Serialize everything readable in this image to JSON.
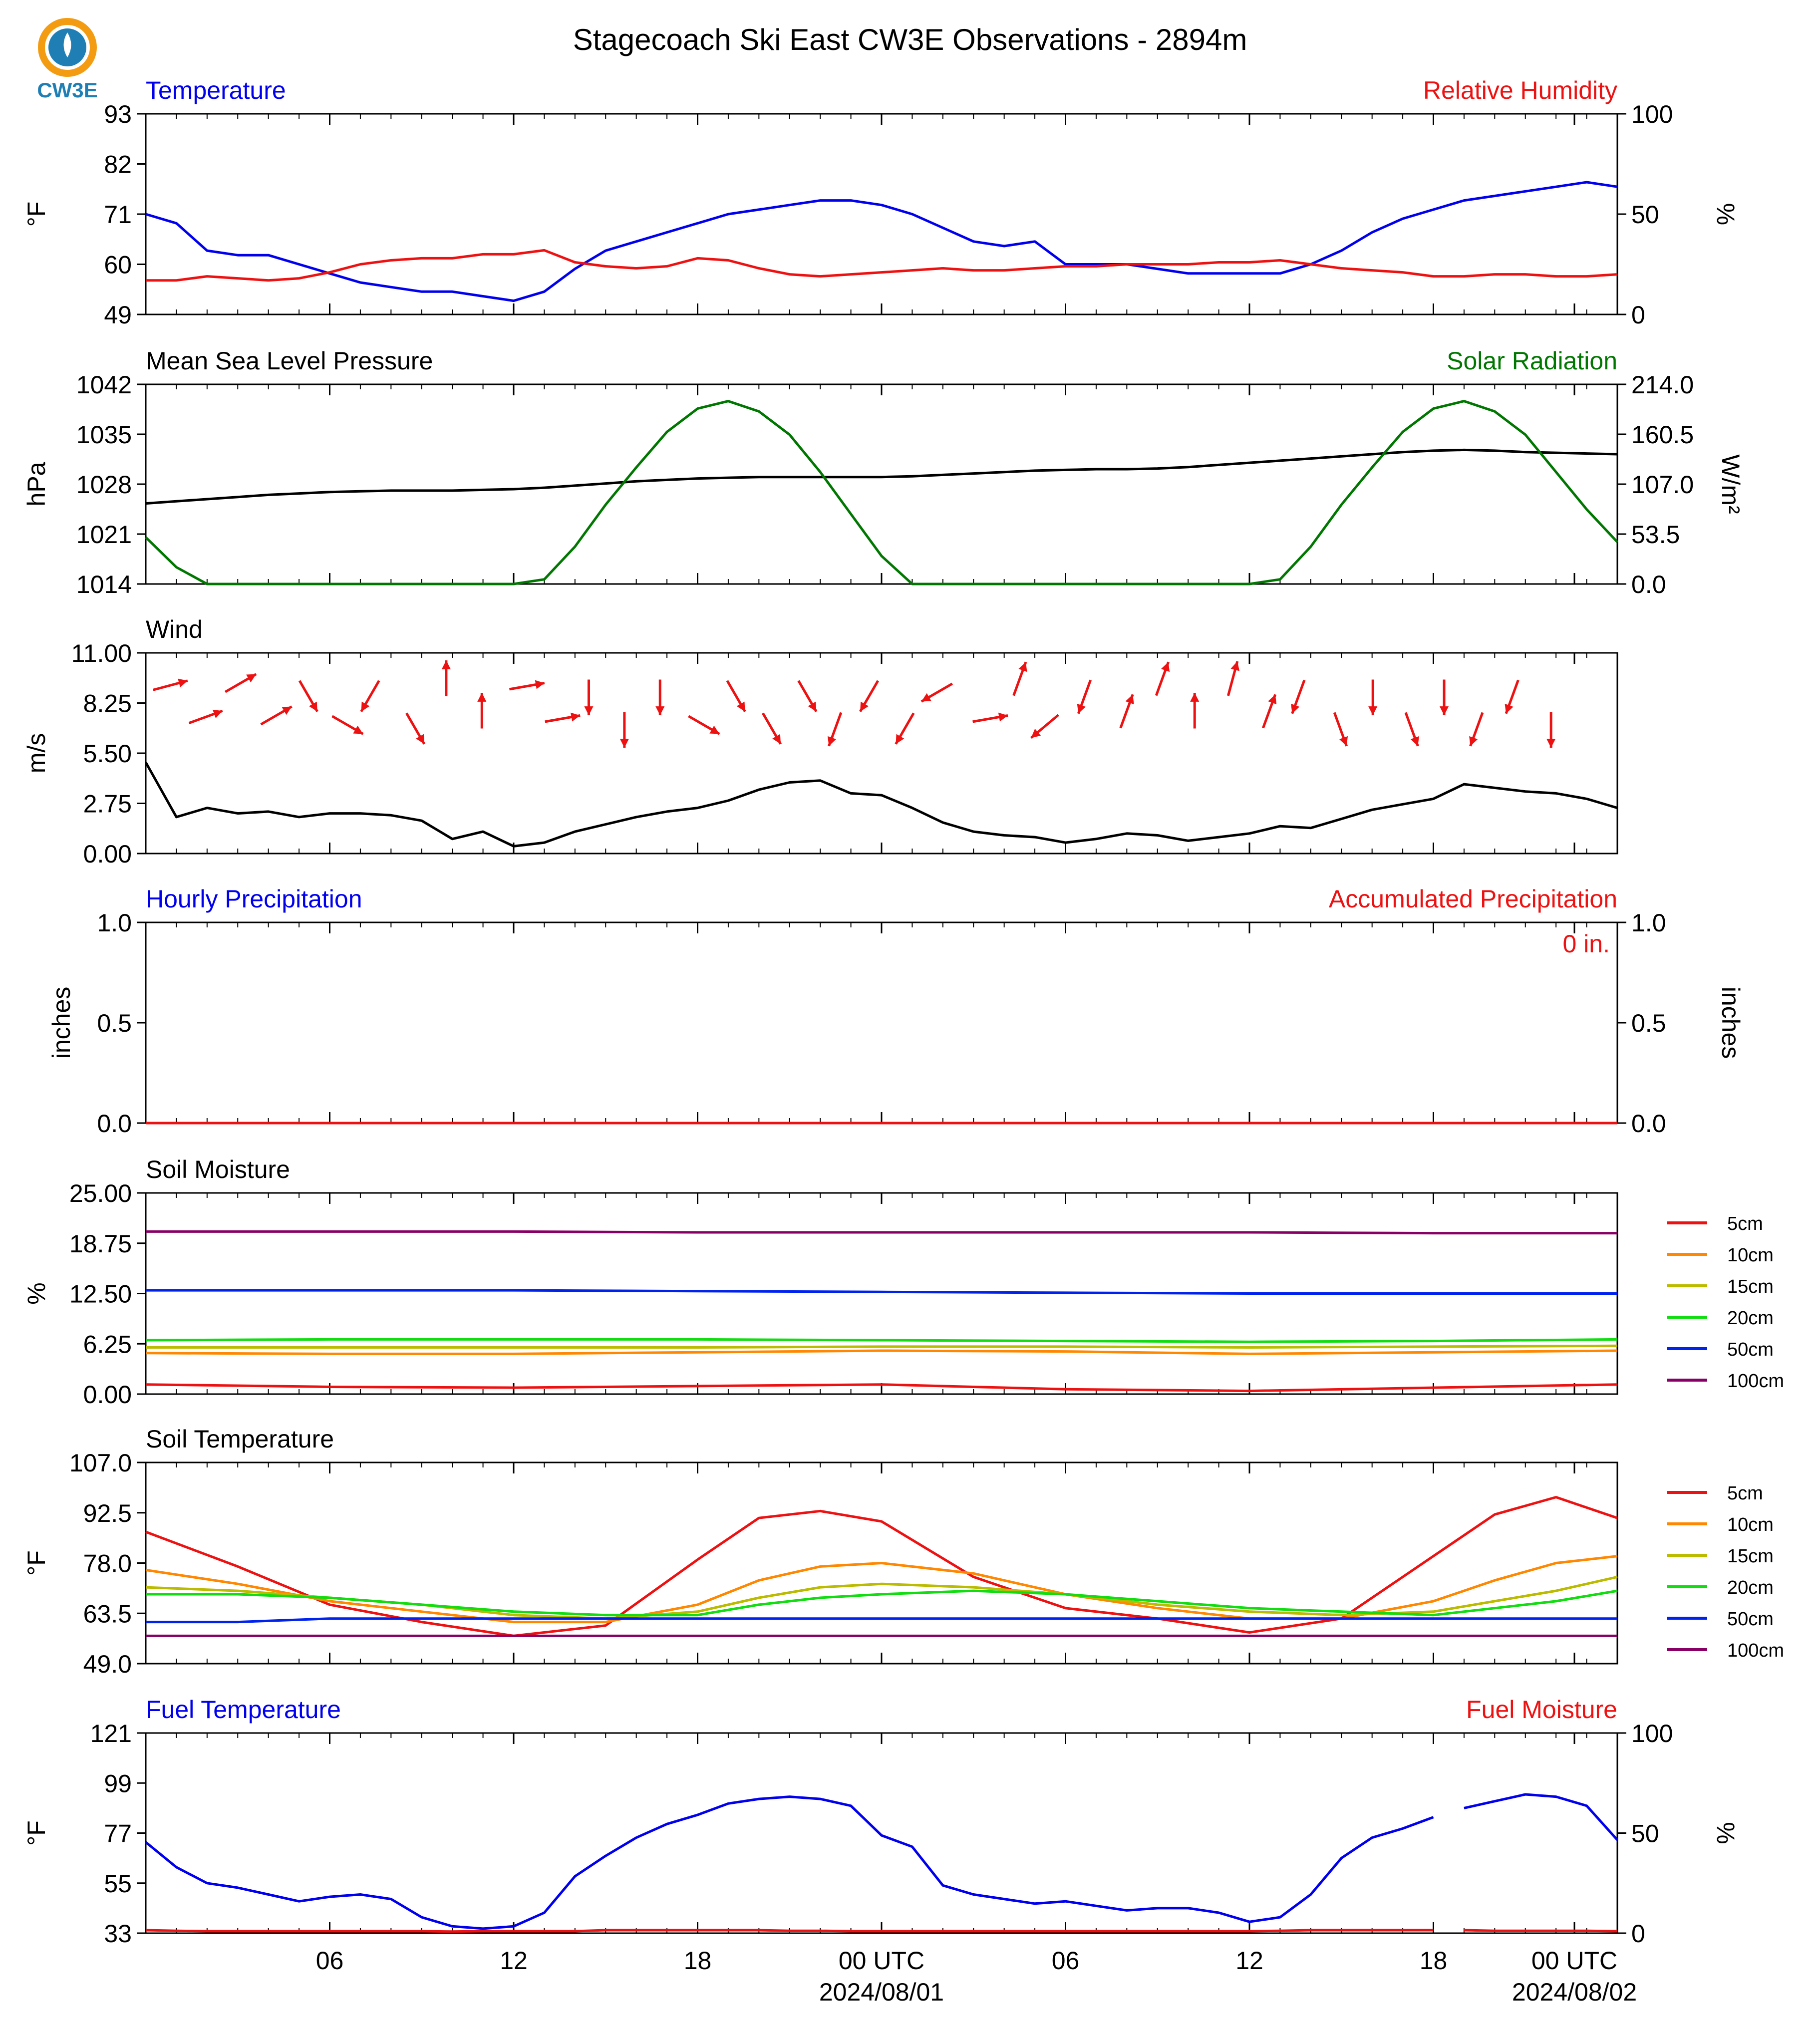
{
  "title": "Stagecoach Ski East CW3E Observations - 2894m",
  "logo": {
    "text": "CW3E",
    "colors": {
      "ring": "#f39c12",
      "drop": "#1f7fb5",
      "text": "#1f7fb5"
    }
  },
  "colors": {
    "blue": "#0000ee",
    "red": "#ee1111",
    "green": "#007700",
    "black": "#000000",
    "soil_5cm": "#ee1111",
    "soil_10cm": "#ff8800",
    "soil_15cm": "#bbbb00",
    "soil_20cm": "#11dd11",
    "soil_50cm": "#0022ee",
    "soil_100cm": "#880066"
  },
  "x_axis": {
    "tick_labels": [
      "06",
      "12",
      "18",
      "00 UTC",
      "06",
      "12",
      "18",
      "00 UTC"
    ],
    "date_labels": [
      "2024/08/01",
      "2024/08/02"
    ]
  },
  "chart_data": [
    {
      "type": "line",
      "panel": "temperature_rh",
      "title_left": "Temperature",
      "title_right": "Relative Humidity",
      "ylabel_left": "°F",
      "ylabel_right": "%",
      "yticks_left": [
        "49",
        "60",
        "71",
        "82",
        "93"
      ],
      "yticks_right": [
        "0",
        "50",
        "100"
      ],
      "ylim_left": [
        49,
        93
      ],
      "ylim_right": [
        0,
        100
      ],
      "x_hours": [
        0,
        1,
        2,
        3,
        4,
        5,
        6,
        7,
        8,
        9,
        10,
        11,
        12,
        13,
        14,
        15,
        16,
        17,
        18,
        19,
        20,
        21,
        22,
        23,
        24,
        25,
        26,
        27,
        28,
        29,
        30,
        31,
        32,
        33,
        34,
        35,
        36,
        37,
        38,
        39,
        40,
        41,
        42,
        43,
        44,
        45,
        46,
        47,
        48
      ],
      "series": [
        {
          "name": "Temperature",
          "axis": "left",
          "values": [
            71,
            69,
            63,
            62,
            62,
            60,
            58,
            56,
            55,
            54,
            54,
            53,
            52,
            54,
            59,
            63,
            65,
            67,
            69,
            71,
            72,
            73,
            74,
            74,
            73,
            71,
            68,
            65,
            64,
            65,
            60,
            60,
            60,
            59,
            58,
            58,
            58,
            58,
            60,
            63,
            67,
            70,
            72,
            74,
            75,
            76,
            77,
            78,
            77
          ]
        },
        {
          "name": "Relative Humidity",
          "axis": "right",
          "values": [
            17,
            17,
            19,
            18,
            17,
            18,
            21,
            25,
            27,
            28,
            28,
            30,
            30,
            32,
            26,
            24,
            23,
            24,
            28,
            27,
            23,
            20,
            19,
            20,
            21,
            22,
            23,
            22,
            22,
            23,
            24,
            24,
            25,
            25,
            25,
            26,
            26,
            27,
            25,
            23,
            22,
            21,
            19,
            19,
            20,
            20,
            19,
            19,
            20
          ]
        }
      ]
    },
    {
      "type": "line",
      "panel": "pressure_solar",
      "title_left": "Mean Sea Level Pressure",
      "title_right": "Solar Radiation",
      "ylabel_left": "hPa",
      "ylabel_right": "W/m²",
      "yticks_left": [
        "1014",
        "1021",
        "1028",
        "1035",
        "1042"
      ],
      "yticks_right": [
        "0.0",
        "53.5",
        "107.0",
        "160.5",
        "214.0"
      ],
      "ylim_left": [
        1014,
        1042
      ],
      "ylim_right": [
        0,
        214
      ],
      "x_hours": [
        0,
        1,
        2,
        3,
        4,
        5,
        6,
        7,
        8,
        9,
        10,
        11,
        12,
        13,
        14,
        15,
        16,
        17,
        18,
        19,
        20,
        21,
        22,
        23,
        24,
        25,
        26,
        27,
        28,
        29,
        30,
        31,
        32,
        33,
        34,
        35,
        36,
        37,
        38,
        39,
        40,
        41,
        42,
        43,
        44,
        45,
        46,
        47,
        48
      ],
      "series": [
        {
          "name": "Mean Sea Level Pressure",
          "axis": "left",
          "values": [
            1025.3,
            1025.6,
            1025.9,
            1026.2,
            1026.5,
            1026.7,
            1026.9,
            1027.0,
            1027.1,
            1027.1,
            1027.1,
            1027.2,
            1027.3,
            1027.5,
            1027.8,
            1028.1,
            1028.4,
            1028.6,
            1028.8,
            1028.9,
            1029.0,
            1029.0,
            1029.0,
            1029.0,
            1029.0,
            1029.1,
            1029.3,
            1029.5,
            1029.7,
            1029.9,
            1030.0,
            1030.1,
            1030.1,
            1030.2,
            1030.4,
            1030.7,
            1031.0,
            1031.3,
            1031.6,
            1031.9,
            1032.2,
            1032.5,
            1032.7,
            1032.8,
            1032.7,
            1032.5,
            1032.4,
            1032.3,
            1032.2
          ]
        },
        {
          "name": "Solar Radiation",
          "axis": "right",
          "values": [
            50,
            18,
            0,
            0,
            0,
            0,
            0,
            0,
            0,
            0,
            0,
            0,
            0,
            5,
            40,
            85,
            125,
            163,
            188,
            196,
            185,
            160,
            120,
            75,
            30,
            0,
            0,
            0,
            0,
            0,
            0,
            0,
            0,
            0,
            0,
            0,
            0,
            5,
            40,
            85,
            125,
            163,
            188,
            196,
            185,
            160,
            120,
            80,
            45
          ]
        }
      ]
    },
    {
      "type": "line",
      "panel": "wind",
      "title_left": "Wind",
      "ylabel_left": "m/s",
      "yticks_left": [
        "0.00",
        "2.75",
        "5.50",
        "8.25",
        "11.00"
      ],
      "ylim_left": [
        0,
        11
      ],
      "x_hours": [
        0,
        1,
        2,
        3,
        4,
        5,
        6,
        7,
        8,
        9,
        10,
        11,
        12,
        13,
        14,
        15,
        16,
        17,
        18,
        19,
        20,
        21,
        22,
        23,
        24,
        25,
        26,
        27,
        28,
        29,
        30,
        31,
        32,
        33,
        34,
        35,
        36,
        37,
        38,
        39,
        40,
        41,
        42,
        43,
        44,
        45,
        46,
        47,
        48
      ],
      "series": [
        {
          "name": "Wind speed",
          "axis": "left",
          "values": [
            5.0,
            2.0,
            2.5,
            2.2,
            2.3,
            2.0,
            2.2,
            2.2,
            2.1,
            1.8,
            0.8,
            1.2,
            0.4,
            0.6,
            1.2,
            1.6,
            2.0,
            2.3,
            2.5,
            2.9,
            3.5,
            3.9,
            4.0,
            3.3,
            3.2,
            2.5,
            1.7,
            1.2,
            1.0,
            0.9,
            0.6,
            0.8,
            1.1,
            1.0,
            0.7,
            0.9,
            1.1,
            1.5,
            1.4,
            1.9,
            2.4,
            2.7,
            3.0,
            3.8,
            3.6,
            3.4,
            3.3,
            3.0,
            2.5
          ]
        }
      ],
      "wind_direction_arrows_deg": [
        75,
        70,
        60,
        60,
        150,
        120,
        210,
        150,
        0,
        0,
        80,
        80,
        180,
        180,
        180,
        120,
        150,
        150,
        150,
        200,
        210,
        210,
        240,
        80,
        20,
        230,
        200,
        20,
        20,
        0,
        15,
        20,
        200,
        160,
        180,
        160,
        180,
        200,
        200,
        180
      ]
    },
    {
      "type": "line",
      "panel": "precipitation",
      "title_left": "Hourly Precipitation",
      "title_right": "Accumulated Precipitation",
      "ylabel_left": "inches",
      "ylabel_right": "inches",
      "yticks_left": [
        "0.0",
        "0.5",
        "1.0"
      ],
      "yticks_right": [
        "0.0",
        "0.5",
        "1.0"
      ],
      "ylim_left": [
        0,
        1
      ],
      "ylim_right": [
        0,
        1
      ],
      "annotation": "0 in.",
      "x_hours": [
        0,
        48
      ],
      "series": [
        {
          "name": "Hourly Precipitation",
          "axis": "left",
          "values": [
            0,
            0
          ]
        },
        {
          "name": "Accumulated Precipitation",
          "axis": "right",
          "values": [
            0,
            0
          ]
        }
      ]
    },
    {
      "type": "line",
      "panel": "soil_moisture",
      "title_left": "Soil Moisture",
      "ylabel_left": "%",
      "yticks_left": [
        "0.00",
        "6.25",
        "12.50",
        "18.75",
        "25.00"
      ],
      "ylim_left": [
        0,
        25
      ],
      "legend_position": "right",
      "x_hours": [
        0,
        6,
        12,
        18,
        24,
        30,
        36,
        42,
        48
      ],
      "series": [
        {
          "name": "5cm",
          "values": [
            1.2,
            0.9,
            0.8,
            1.0,
            1.2,
            0.6,
            0.4,
            0.8,
            1.2
          ]
        },
        {
          "name": "10cm",
          "values": [
            5.1,
            5.0,
            5.0,
            5.2,
            5.4,
            5.3,
            5.0,
            5.2,
            5.4
          ]
        },
        {
          "name": "15cm",
          "values": [
            5.8,
            5.8,
            5.8,
            5.8,
            5.9,
            5.9,
            5.8,
            5.9,
            6.0
          ]
        },
        {
          "name": "20cm",
          "values": [
            6.7,
            6.8,
            6.8,
            6.8,
            6.7,
            6.6,
            6.5,
            6.6,
            6.8
          ]
        },
        {
          "name": "50cm",
          "values": [
            12.9,
            12.9,
            12.9,
            12.8,
            12.7,
            12.6,
            12.5,
            12.5,
            12.5
          ]
        },
        {
          "name": "100cm",
          "values": [
            20.2,
            20.2,
            20.2,
            20.1,
            20.1,
            20.1,
            20.1,
            20.0,
            20.0
          ]
        }
      ]
    },
    {
      "type": "line",
      "panel": "soil_temperature",
      "title_left": "Soil Temperature",
      "ylabel_left": "°F",
      "yticks_left": [
        "49.0",
        "63.5",
        "78.0",
        "92.5",
        "107.0"
      ],
      "ylim_left": [
        49,
        107
      ],
      "legend_position": "right",
      "x_hours": [
        0,
        3,
        6,
        9,
        12,
        15,
        18,
        20,
        22,
        24,
        27,
        30,
        33,
        36,
        39,
        42,
        44,
        46,
        48
      ],
      "series": [
        {
          "name": "5cm",
          "values": [
            87,
            77,
            66,
            61,
            57,
            60,
            79,
            91,
            93,
            90,
            74,
            65,
            62,
            58,
            62,
            80,
            92,
            97,
            91
          ]
        },
        {
          "name": "10cm",
          "values": [
            76,
            72,
            67,
            64,
            61,
            61,
            66,
            73,
            77,
            78,
            75,
            69,
            65,
            62,
            62,
            67,
            73,
            78,
            80
          ]
        },
        {
          "name": "15cm",
          "values": [
            71,
            70,
            68,
            66,
            63,
            62,
            64,
            68,
            71,
            72,
            71,
            69,
            66,
            64,
            63,
            64,
            67,
            70,
            74
          ]
        },
        {
          "name": "20cm",
          "values": [
            69,
            69,
            68,
            66,
            64,
            63,
            63,
            66,
            68,
            69,
            70,
            69,
            67,
            65,
            64,
            63,
            65,
            67,
            70
          ]
        },
        {
          "name": "50cm",
          "values": [
            61,
            61,
            62,
            62,
            62,
            62,
            62,
            62,
            62,
            62,
            62,
            62,
            62,
            62,
            62,
            62,
            62,
            62,
            62
          ]
        },
        {
          "name": "100cm",
          "values": [
            57,
            57,
            57,
            57,
            57,
            57,
            57,
            57,
            57,
            57,
            57,
            57,
            57,
            57,
            57,
            57,
            57,
            57,
            57
          ]
        }
      ]
    },
    {
      "type": "line",
      "panel": "fuel",
      "title_left": "Fuel Temperature",
      "title_right": "Fuel Moisture",
      "ylabel_left": "°F",
      "ylabel_right": "%",
      "yticks_left": [
        "33",
        "55",
        "77",
        "99",
        "121"
      ],
      "yticks_right": [
        "0",
        "50",
        "100"
      ],
      "ylim_left": [
        33,
        121
      ],
      "ylim_right": [
        0,
        100
      ],
      "x_hours": [
        0,
        1,
        2,
        3,
        4,
        5,
        6,
        7,
        8,
        9,
        10,
        11,
        12,
        13,
        14,
        15,
        16,
        17,
        18,
        19,
        20,
        21,
        22,
        23,
        24,
        25,
        26,
        27,
        28,
        29,
        30,
        31,
        32,
        33,
        34,
        35,
        36,
        37,
        38,
        39,
        40,
        41,
        42,
        43,
        44,
        45,
        46,
        47,
        48
      ],
      "series": [
        {
          "name": "Fuel Temperature",
          "axis": "left",
          "values": [
            73,
            62,
            55,
            53,
            50,
            47,
            49,
            50,
            48,
            40,
            36,
            35,
            36,
            42,
            58,
            67,
            75,
            81,
            85,
            90,
            92,
            93,
            92,
            89,
            76,
            71,
            54,
            50,
            48,
            46,
            47,
            45,
            43,
            44,
            44,
            42,
            38,
            40,
            50,
            66,
            75,
            79,
            84,
            88,
            91,
            94,
            93,
            89,
            74
          ]
        },
        {
          "name": "Fuel Moisture",
          "axis": "right",
          "values": [
            1.5,
            1.2,
            1.0,
            1.0,
            1.0,
            1.0,
            1.0,
            1.0,
            1.0,
            1.0,
            0.8,
            1.0,
            1.0,
            1.0,
            1.0,
            1.5,
            1.5,
            1.5,
            1.5,
            1.5,
            1.5,
            1.2,
            1.2,
            1.0,
            1.0,
            1.0,
            1.0,
            1.0,
            1.0,
            1.0,
            1.0,
            1.0,
            1.0,
            1.0,
            1.0,
            1.0,
            1.0,
            1.2,
            1.5,
            1.5,
            1.5,
            1.5,
            1.5,
            1.5,
            1.2,
            1.2,
            1.2,
            1.2,
            1.0
          ]
        }
      ],
      "gap_hours": [
        42,
        43
      ]
    }
  ]
}
